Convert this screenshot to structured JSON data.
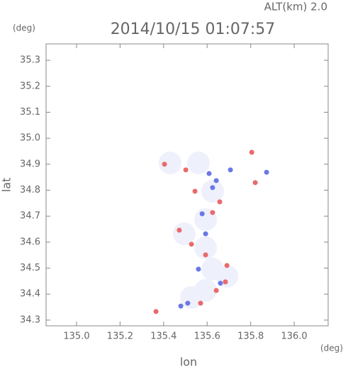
{
  "chart_data": {
    "type": "scatter",
    "title": "2014/10/15 01:07:57",
    "annotation": "ALT(km) 2.0",
    "xlabel": "lon",
    "ylabel": "lat",
    "xunit": "(deg)",
    "yunit": "(deg)",
    "xlim": [
      134.86,
      136.156
    ],
    "ylim": [
      34.278,
      35.363
    ],
    "xticks": [
      {
        "value": 135.0,
        "label": "135.0"
      },
      135.2,
      135.4,
      135.6,
      135.8,
      {
        "value": 136.0,
        "label": "136.0"
      }
    ],
    "yticks": [
      34.3,
      34.4,
      34.5,
      34.6,
      34.7,
      34.8,
      34.9,
      {
        "value": 35.0,
        "label": "35.0"
      },
      35.1,
      35.2,
      35.3
    ],
    "grid": false,
    "series": [
      {
        "color": "#eef0fb",
        "x": [
          135.43,
          135.56,
          135.625,
          135.593,
          135.495,
          135.593,
          135.625,
          135.593,
          135.528,
          135.691
        ],
        "y": [
          34.905,
          34.905,
          34.796,
          34.687,
          34.632,
          34.578,
          34.496,
          34.414,
          34.387,
          34.469
        ]
      },
      {
        "color": "#e96a6a",
        "x": [
          135.365,
          135.57,
          135.805,
          135.821,
          135.404,
          135.472,
          135.528,
          135.691,
          135.684,
          135.625,
          135.544,
          135.658,
          135.502,
          135.593,
          135.642
        ],
        "y": [
          34.333,
          34.365,
          34.946,
          34.829,
          34.9,
          34.646,
          34.592,
          34.51,
          34.447,
          34.714,
          34.796,
          34.755,
          34.878,
          34.551,
          34.414
        ]
      },
      {
        "color": "#6a78e6",
        "x": [
          135.479,
          135.511,
          135.609,
          135.642,
          135.873,
          135.661,
          135.593,
          135.56,
          135.625,
          135.577,
          135.707
        ],
        "y": [
          34.354,
          34.365,
          34.864,
          34.837,
          34.869,
          34.442,
          34.632,
          34.496,
          34.81,
          34.709,
          34.878
        ]
      }
    ]
  }
}
